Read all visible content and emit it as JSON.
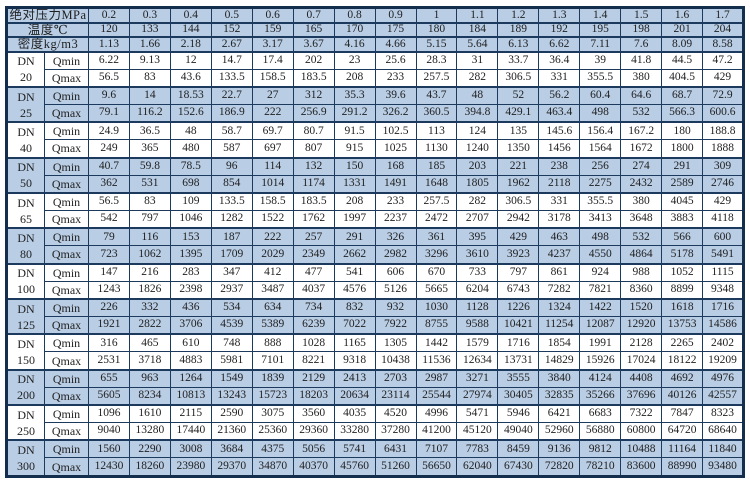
{
  "labels": {
    "dn": "DN",
    "qmin": "Qmin",
    "qmax": "Qmax"
  },
  "colors": {
    "cell_blue": "#b9cde5",
    "cell_white": "#ffffff",
    "grid_border": "#1c3a5e",
    "outer_border": "#142e4d",
    "text": "#1f1f1f"
  },
  "header_rows": [
    {
      "label": "绝对压力MPa",
      "values": [
        "0.2",
        "0.3",
        "0.4",
        "0.5",
        "0.6",
        "0.7",
        "0.8",
        "0.9",
        "1",
        "1.1",
        "1.2",
        "1.3",
        "1.4",
        "1.5",
        "1.6",
        "1.7"
      ]
    },
    {
      "label": "温度℃",
      "values": [
        "120",
        "133",
        "144",
        "152",
        "159",
        "165",
        "170",
        "175",
        "180",
        "184",
        "189",
        "192",
        "195",
        "198",
        "201",
        "204"
      ]
    },
    {
      "label": "密度kg/m3",
      "values": [
        "1.13",
        "1.66",
        "2.18",
        "2.67",
        "3.17",
        "3.67",
        "4.16",
        "4.66",
        "5.15",
        "5.64",
        "6.13",
        "6.62",
        "7.11",
        "7.6",
        "8.09",
        "8.58"
      ]
    }
  ],
  "groups": [
    {
      "dn": "20",
      "shaded": false,
      "qmin": [
        "6.22",
        "9.13",
        "12",
        "14.7",
        "17.4",
        "202",
        "23",
        "25.6",
        "28.3",
        "31",
        "33.7",
        "36.4",
        "39",
        "41.8",
        "44.5",
        "47.2"
      ],
      "qmax": [
        "56.5",
        "83",
        "43.6",
        "133.5",
        "158.5",
        "183.5",
        "208",
        "233",
        "257.5",
        "282",
        "306.5",
        "331",
        "355.5",
        "380",
        "404.5",
        "429"
      ]
    },
    {
      "dn": "25",
      "shaded": true,
      "qmin": [
        "9.6",
        "14",
        "18.53",
        "22.7",
        "27",
        "312",
        "35.3",
        "39.6",
        "43.7",
        "48",
        "52",
        "56.2",
        "60.4",
        "64.6",
        "68.7",
        "72.9"
      ],
      "qmax": [
        "79.1",
        "116.2",
        "152.6",
        "186.9",
        "222",
        "256.9",
        "291.2",
        "326.2",
        "360.5",
        "394.8",
        "429.1",
        "463.4",
        "498",
        "532",
        "566.3",
        "600.6"
      ]
    },
    {
      "dn": "40",
      "shaded": false,
      "qmin": [
        "24.9",
        "36.5",
        "48",
        "58.7",
        "69.7",
        "80.7",
        "91.5",
        "102.5",
        "113",
        "124",
        "135",
        "145.6",
        "156.4",
        "167.2",
        "180",
        "188.8"
      ],
      "qmax": [
        "249",
        "365",
        "480",
        "587",
        "697",
        "807",
        "915",
        "1025",
        "1130",
        "1240",
        "1350",
        "1456",
        "1564",
        "1672",
        "1800",
        "1888"
      ]
    },
    {
      "dn": "50",
      "shaded": true,
      "qmin": [
        "40.7",
        "59.8",
        "78.5",
        "96",
        "114",
        "132",
        "150",
        "168",
        "185",
        "203",
        "221",
        "238",
        "256",
        "274",
        "291",
        "309"
      ],
      "qmax": [
        "362",
        "531",
        "698",
        "854",
        "1014",
        "1174",
        "1331",
        "1491",
        "1648",
        "1805",
        "1962",
        "2118",
        "2275",
        "2432",
        "2589",
        "2746"
      ]
    },
    {
      "dn": "65",
      "shaded": false,
      "qmin": [
        "56.5",
        "83",
        "109",
        "133.5",
        "158.5",
        "183.5",
        "208",
        "233",
        "257.5",
        "282",
        "306.5",
        "331",
        "355.5",
        "380",
        "4045",
        "429"
      ],
      "qmax": [
        "542",
        "797",
        "1046",
        "1282",
        "1522",
        "1762",
        "1997",
        "2237",
        "2472",
        "2707",
        "2942",
        "3178",
        "3413",
        "3648",
        "3883",
        "4118"
      ]
    },
    {
      "dn": "80",
      "shaded": true,
      "qmin": [
        "79",
        "116",
        "153",
        "187",
        "222",
        "257",
        "291",
        "326",
        "361",
        "395",
        "429",
        "463",
        "498",
        "532",
        "566",
        "600"
      ],
      "qmax": [
        "723",
        "1062",
        "1395",
        "1709",
        "2029",
        "2349",
        "2662",
        "2982",
        "3296",
        "3610",
        "3923",
        "4237",
        "4550",
        "4864",
        "5178",
        "5491"
      ]
    },
    {
      "dn": "100",
      "shaded": false,
      "qmin": [
        "147",
        "216",
        "283",
        "347",
        "412",
        "477",
        "541",
        "606",
        "670",
        "733",
        "797",
        "861",
        "924",
        "988",
        "1052",
        "1115"
      ],
      "qmax": [
        "1243",
        "1826",
        "2398",
        "2937",
        "3487",
        "4037",
        "4576",
        "5126",
        "5665",
        "6204",
        "6743",
        "7282",
        "7821",
        "8360",
        "8899",
        "9348"
      ]
    },
    {
      "dn": "125",
      "shaded": true,
      "qmin": [
        "226",
        "332",
        "436",
        "534",
        "634",
        "734",
        "832",
        "932",
        "1030",
        "1128",
        "1226",
        "1324",
        "1422",
        "1520",
        "1618",
        "1716"
      ],
      "qmax": [
        "1921",
        "2822",
        "3706",
        "4539",
        "5389",
        "6239",
        "7022",
        "7922",
        "8755",
        "9588",
        "10421",
        "11254",
        "12087",
        "12920",
        "13753",
        "14586"
      ]
    },
    {
      "dn": "150",
      "shaded": false,
      "qmin": [
        "316",
        "465",
        "610",
        "748",
        "888",
        "1028",
        "1165",
        "1305",
        "1442",
        "1579",
        "1716",
        "1854",
        "1991",
        "2128",
        "2265",
        "2402"
      ],
      "qmax": [
        "2531",
        "3718",
        "4883",
        "5981",
        "7101",
        "8221",
        "9318",
        "10438",
        "11536",
        "12634",
        "13731",
        "14829",
        "15926",
        "17024",
        "18122",
        "19209"
      ]
    },
    {
      "dn": "200",
      "shaded": true,
      "qmin": [
        "655",
        "963",
        "1264",
        "1549",
        "1839",
        "2129",
        "2413",
        "2703",
        "2987",
        "3271",
        "3555",
        "3840",
        "4124",
        "4408",
        "4692",
        "4976"
      ],
      "qmax": [
        "5605",
        "8234",
        "10813",
        "13243",
        "15723",
        "18203",
        "20634",
        "23114",
        "25544",
        "27974",
        "30405",
        "32835",
        "35266",
        "37696",
        "40126",
        "42557"
      ]
    },
    {
      "dn": "250",
      "shaded": false,
      "qmin": [
        "1096",
        "1610",
        "2115",
        "2590",
        "3075",
        "3560",
        "4035",
        "4520",
        "4996",
        "5471",
        "5946",
        "6421",
        "6683",
        "7322",
        "7847",
        "8323"
      ],
      "qmax": [
        "9040",
        "13280",
        "17440",
        "21360",
        "25360",
        "29360",
        "33280",
        "37280",
        "41200",
        "45120",
        "49040",
        "52960",
        "56880",
        "60800",
        "64720",
        "68640"
      ]
    },
    {
      "dn": "300",
      "shaded": true,
      "qmin": [
        "1560",
        "2290",
        "3008",
        "3684",
        "4375",
        "5056",
        "5741",
        "6431",
        "7107",
        "7783",
        "8459",
        "9136",
        "9812",
        "10488",
        "11164",
        "11840"
      ],
      "qmax": [
        "12430",
        "18260",
        "23980",
        "29370",
        "34870",
        "40370",
        "45760",
        "51260",
        "56650",
        "62040",
        "67430",
        "72820",
        "78210",
        "83600",
        "88990",
        "93480"
      ]
    }
  ]
}
